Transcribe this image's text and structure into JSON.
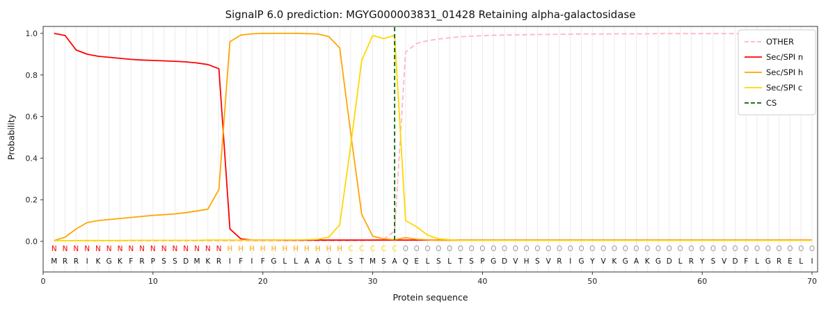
{
  "chart_data": {
    "type": "line",
    "title": "SignalP 6.0 prediction: MGYG000003831_01428 Retaining alpha-galactosidase",
    "xlabel": "Protein sequence",
    "ylabel": "Probability",
    "xlim": [
      0,
      70.5
    ],
    "ylim": [
      0,
      1
    ],
    "xticks": [
      0,
      10,
      20,
      30,
      40,
      50,
      60,
      70
    ],
    "yticks": [
      0.0,
      0.2,
      0.4,
      0.6,
      0.8,
      1.0
    ],
    "x": {
      "from": 1,
      "to": 70,
      "step": 1
    },
    "grid": "vertical-per-residue",
    "legend_position": "upper right",
    "series": [
      {
        "name": "OTHER",
        "color": "#ffb6c1",
        "linestyle": "dashed",
        "values": [
          0.003,
          0.003,
          0.003,
          0.003,
          0.003,
          0.003,
          0.003,
          0.003,
          0.003,
          0.003,
          0.003,
          0.003,
          0.003,
          0.003,
          0.003,
          0.003,
          0.003,
          0.003,
          0.003,
          0.003,
          0.003,
          0.003,
          0.003,
          0.003,
          0.003,
          0.003,
          0.003,
          0.003,
          0.004,
          0.006,
          0.01,
          0.05,
          0.91,
          0.952,
          0.965,
          0.973,
          0.979,
          0.984,
          0.987,
          0.989,
          0.991,
          0.992,
          0.993,
          0.994,
          0.995,
          0.995,
          0.996,
          0.996,
          0.997,
          0.997,
          0.997,
          0.998,
          0.998,
          0.998,
          0.998,
          0.999,
          0.999,
          0.999,
          0.999,
          0.999,
          0.999,
          0.999,
          0.999,
          0.999,
          0.999,
          0.999,
          0.999,
          0.999,
          0.999,
          0.999
        ]
      },
      {
        "name": "Sec/SPI n",
        "color": "#ff0000",
        "linestyle": "solid",
        "values": [
          1.0,
          0.99,
          0.92,
          0.9,
          0.89,
          0.885,
          0.88,
          0.875,
          0.872,
          0.87,
          0.868,
          0.866,
          0.863,
          0.858,
          0.85,
          0.83,
          0.06,
          0.012,
          0.006,
          0.006,
          0.006,
          0.006,
          0.006,
          0.006,
          0.006,
          0.006,
          0.006,
          0.006,
          0.006,
          0.006,
          0.006,
          0.006,
          0.006,
          0.006,
          0.006,
          0.006,
          0.006,
          0.006,
          0.006,
          0.006,
          0.006,
          0.006,
          0.006,
          0.006,
          0.006,
          0.006,
          0.006,
          0.006,
          0.006,
          0.006,
          0.006,
          0.006,
          0.006,
          0.006,
          0.006,
          0.006,
          0.006,
          0.006,
          0.006,
          0.006,
          0.006,
          0.006,
          0.006,
          0.006,
          0.006,
          0.006,
          0.006,
          0.006,
          0.006,
          0.006
        ]
      },
      {
        "name": "Sec/SPI h",
        "color": "#ffa500",
        "linestyle": "solid",
        "values": [
          0.004,
          0.02,
          0.06,
          0.09,
          0.1,
          0.105,
          0.11,
          0.115,
          0.12,
          0.125,
          0.128,
          0.132,
          0.138,
          0.146,
          0.155,
          0.25,
          0.96,
          0.992,
          0.998,
          1.0,
          1.0,
          1.0,
          1.0,
          0.999,
          0.997,
          0.985,
          0.93,
          0.52,
          0.13,
          0.025,
          0.012,
          0.008,
          0.018,
          0.01,
          0.007,
          0.005,
          0.005,
          0.005,
          0.005,
          0.005,
          0.005,
          0.005,
          0.005,
          0.005,
          0.005,
          0.005,
          0.005,
          0.005,
          0.005,
          0.005,
          0.005,
          0.005,
          0.005,
          0.005,
          0.005,
          0.005,
          0.005,
          0.005,
          0.005,
          0.005,
          0.005,
          0.005,
          0.005,
          0.005,
          0.005,
          0.005,
          0.005,
          0.005,
          0.005,
          0.005
        ]
      },
      {
        "name": "Sec/SPI c",
        "color": "#ffd700",
        "linestyle": "solid",
        "values": [
          0.003,
          0.003,
          0.004,
          0.004,
          0.004,
          0.004,
          0.004,
          0.005,
          0.005,
          0.005,
          0.005,
          0.005,
          0.005,
          0.005,
          0.006,
          0.006,
          0.006,
          0.006,
          0.006,
          0.006,
          0.006,
          0.007,
          0.007,
          0.008,
          0.01,
          0.02,
          0.08,
          0.46,
          0.87,
          0.99,
          0.975,
          0.99,
          0.1,
          0.07,
          0.03,
          0.012,
          0.008,
          0.005,
          0.005,
          0.005,
          0.005,
          0.005,
          0.005,
          0.005,
          0.005,
          0.005,
          0.005,
          0.005,
          0.005,
          0.005,
          0.005,
          0.005,
          0.005,
          0.005,
          0.005,
          0.005,
          0.005,
          0.005,
          0.005,
          0.005,
          0.005,
          0.005,
          0.005,
          0.005,
          0.005,
          0.005,
          0.005,
          0.005,
          0.005,
          0.005
        ]
      }
    ],
    "cs": {
      "label": "CS",
      "position": 32,
      "color": "#006400",
      "linestyle": "dashed"
    },
    "sequence": "MRRIKGKFRPSSDMKRIFIFGLLAAGLSTMSAQELSLTSPGDVHSVRIGYVKGAKGDLRYSVDFLGRELI",
    "region_labels": "NNNNNNNNNNNNNNNNHHHHHHHHHHHCCCCCOOOOOOOOOOOOOOOOOOOOOOOOOOOOOOOOOOOOOO",
    "region_colors": {
      "N": "#ff0000",
      "H": "#ffa500",
      "C": "#ffd700",
      "O": "#999999"
    }
  }
}
